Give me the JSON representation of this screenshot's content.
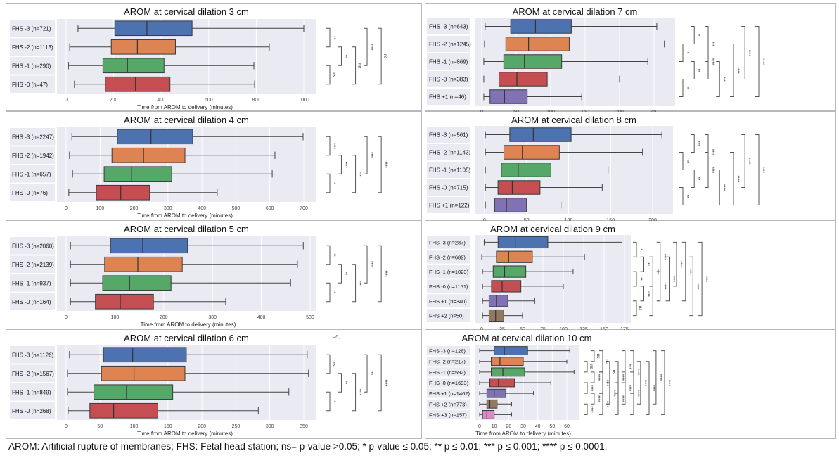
{
  "caption": "AROM: Artificial rupture of membranes; FHS: Fetal head station; ns= p-value >0.05; * p-value ≤ 0.05; ** p ≤ 0.01; *** p ≤ 0.001; **** p ≤ 0.0001.",
  "stray_text": "=6,",
  "colors": {
    "FHS -3": "#4c72b0",
    "FHS -2": "#dd8452",
    "FHS -1": "#55a868",
    "FHS -0": "#c44e52",
    "FHS +1": "#8172b3",
    "FHS +2": "#937860",
    "FHS +3": "#da8bc3",
    "plot_bg": "#eaeaf2"
  },
  "chart_data": [
    {
      "type": "box",
      "title": "AROM at cervical dilation 3 cm",
      "xlabel": "Time from AROM to delivery (minutes)",
      "xticks": [
        0,
        200,
        400,
        600,
        800,
        1000
      ],
      "categories": [
        "FHS -3 (n=721)",
        "FHS -2 (n=1113)",
        "FHS -1 (n=290)",
        "FHS -0 (n=47)"
      ],
      "groups": [
        "FHS -3",
        "FHS -2",
        "FHS -1",
        "FHS -0"
      ],
      "boxes": [
        [
          50,
          205,
          340,
          530,
          1000
        ],
        [
          15,
          190,
          300,
          460,
          855
        ],
        [
          10,
          155,
          258,
          412,
          790
        ],
        [
          35,
          165,
          292,
          437,
          793
        ]
      ],
      "comparisons": [
        [
          2,
          3,
          "ns"
        ],
        [
          1,
          2,
          "**"
        ],
        [
          0,
          1,
          "**"
        ],
        [
          1,
          3,
          "ns"
        ],
        [
          0,
          2,
          "****"
        ],
        [
          0,
          3,
          "ns"
        ]
      ]
    },
    {
      "type": "box",
      "title": "AROM at cervical dilation 4 cm",
      "xlabel": "Time from AROM to delivery (minutes)",
      "xticks": [
        0,
        100,
        200,
        300,
        400,
        500,
        600,
        700
      ],
      "categories": [
        "FHS -3 (n=2247)",
        "FHS -2 (n=1942)",
        "FHS -1 (n=657)",
        "FHS -0 (n=76)"
      ],
      "groups": [
        "FHS -3",
        "FHS -2",
        "FHS -1",
        "FHS -0"
      ],
      "boxes": [
        [
          17,
          151,
          250,
          373,
          698
        ],
        [
          10,
          135,
          228,
          350,
          615
        ],
        [
          19,
          112,
          193,
          311,
          607
        ],
        [
          8,
          89,
          161,
          246,
          445
        ]
      ],
      "comparisons": [
        [
          2,
          3,
          "*"
        ],
        [
          1,
          2,
          "****"
        ],
        [
          0,
          1,
          "****"
        ],
        [
          1,
          3,
          "***"
        ],
        [
          0,
          2,
          "****"
        ],
        [
          0,
          3,
          "****"
        ]
      ]
    },
    {
      "type": "box",
      "title": "AROM at cervical dilation 5 cm",
      "xlabel": "Time from AROM to delivery (minutes)",
      "xticks": [
        0,
        100,
        200,
        300,
        400,
        500
      ],
      "categories": [
        "FHS -3 (n=2060)",
        "FHS -2 (n=2139)",
        "FHS -1 (n=937)",
        "FHS -0 (n=164)"
      ],
      "groups": [
        "FHS -3",
        "FHS -2",
        "FHS -1",
        "FHS -0"
      ],
      "boxes": [
        [
          9,
          91,
          157,
          249,
          486
        ],
        [
          9,
          79,
          147,
          238,
          474
        ],
        [
          9,
          75,
          130,
          215,
          460
        ],
        [
          9,
          60,
          111,
          179,
          327
        ]
      ],
      "comparisons": [
        [
          2,
          3,
          "*"
        ],
        [
          1,
          2,
          "**"
        ],
        [
          0,
          1,
          "**"
        ],
        [
          1,
          3,
          "***"
        ],
        [
          0,
          2,
          "****"
        ],
        [
          0,
          3,
          "****"
        ]
      ]
    },
    {
      "type": "box",
      "title": "AROM at cervical dilation 6 cm",
      "xlabel": "Time from AROM to delivery (minutes)",
      "xticks": [
        0,
        50,
        100,
        150,
        200,
        250,
        300,
        350
      ],
      "categories": [
        "FHS -3 (n=1126)",
        "FHS -2 (n=1567)",
        "FHS -1 (n=849)",
        "FHS -0 (n=268)"
      ],
      "groups": [
        "FHS -3",
        "FHS -2",
        "FHS -1",
        "FHS -0"
      ],
      "boxes": [
        [
          5,
          55,
          98,
          177,
          355
        ],
        [
          2,
          52,
          100,
          175,
          357
        ],
        [
          2,
          41,
          89,
          157,
          328
        ],
        [
          3,
          35,
          70,
          135,
          283
        ]
      ],
      "comparisons": [
        [
          2,
          3,
          "*"
        ],
        [
          1,
          2,
          "**"
        ],
        [
          0,
          1,
          "ns"
        ],
        [
          1,
          3,
          "****"
        ],
        [
          0,
          2,
          "**"
        ],
        [
          0,
          3,
          "****"
        ]
      ]
    },
    {
      "type": "box",
      "title": "AROM at cervical dilation 7 cm",
      "xlabel": "Time from AROM to delivery (minutes)",
      "xticks": [
        0,
        50,
        100,
        150,
        200,
        250
      ],
      "categories": [
        "FHS -3 (n=643)",
        "FHS -2 (n=1245)",
        "FHS -1 (n=869)",
        "FHS -0 (n=383)",
        "FHS +1 (n=46)"
      ],
      "groups": [
        "FHS -3",
        "FHS -2",
        "FHS -1",
        "FHS -0",
        "FHS +1"
      ],
      "boxes": [
        [
          5,
          42,
          78,
          130,
          254
        ],
        [
          4,
          35,
          68,
          127,
          265
        ],
        [
          3,
          32,
          62,
          116,
          241
        ],
        [
          3,
          25,
          51,
          95,
          200
        ],
        [
          3,
          12,
          33,
          66,
          145
        ]
      ],
      "comparisons": [
        [
          3,
          4,
          "*"
        ],
        [
          2,
          3,
          "**"
        ],
        [
          1,
          2,
          "*"
        ],
        [
          0,
          1,
          "*"
        ],
        [
          1,
          3,
          "****"
        ],
        [
          2,
          4,
          "***"
        ],
        [
          0,
          2,
          "***"
        ],
        [
          1,
          4,
          "****"
        ],
        [
          0,
          3,
          "****"
        ],
        [
          0,
          4,
          "****"
        ]
      ]
    },
    {
      "type": "box",
      "title": "AROM at cervical dilation 8 cm",
      "xlabel": "Time from AROM to delivery (minutes)",
      "xticks": [
        0,
        50,
        100,
        150,
        200
      ],
      "categories": [
        "FHS -3 (n=561)",
        "FHS -2 (n=1143)",
        "FHS -1 (n=1105)",
        "FHS -0 (n=715)",
        "FHS +1 (n=122)"
      ],
      "groups": [
        "FHS -3",
        "FHS -2",
        "FHS -1",
        "FHS -0",
        "FHS +1"
      ],
      "boxes": [
        [
          1,
          30,
          58,
          103,
          211
        ],
        [
          1,
          23,
          45,
          89,
          188
        ],
        [
          1,
          20,
          40,
          79,
          147
        ],
        [
          1,
          16,
          33,
          66,
          140
        ],
        [
          1,
          12,
          26,
          50,
          91
        ]
      ],
      "comparisons": [
        [
          3,
          4,
          "**"
        ],
        [
          2,
          3,
          "**"
        ],
        [
          1,
          2,
          "**"
        ],
        [
          0,
          1,
          "***"
        ],
        [
          1,
          3,
          "****"
        ],
        [
          2,
          4,
          "****"
        ],
        [
          0,
          2,
          "****"
        ],
        [
          1,
          4,
          "****"
        ],
        [
          0,
          3,
          "****"
        ],
        [
          0,
          4,
          "****"
        ]
      ]
    },
    {
      "type": "box",
      "title": "AROM at cervical dilation 9 cm",
      "xlabel": "Time from AROM to delivery (minutes)",
      "xticks": [
        0,
        25,
        50,
        75,
        100,
        125,
        150,
        175
      ],
      "categories": [
        "FHS -3 (n=287)",
        "FHS -2 (n=689)",
        "FHS -1 (n=1023)",
        "FHS -0 (n=1151)",
        "FHS +1 (n=340)",
        "FHS +2 (n=50)"
      ],
      "groups": [
        "FHS -3",
        "FHS -2",
        "FHS -1",
        "FHS -0",
        "FHS +1",
        "FHS +2"
      ],
      "boxes": [
        [
          3,
          20,
          41,
          81,
          172
        ],
        [
          0,
          18,
          33,
          62,
          126
        ],
        [
          1,
          14,
          28,
          54,
          112
        ],
        [
          1,
          12,
          25,
          48,
          100
        ],
        [
          1,
          9,
          18,
          32,
          65
        ],
        [
          1,
          9,
          17,
          27,
          50
        ]
      ],
      "comparisons": [
        [
          4,
          5,
          "ns"
        ],
        [
          3,
          4,
          "****"
        ],
        [
          2,
          3,
          "**"
        ],
        [
          1,
          2,
          "**"
        ],
        [
          0,
          1,
          "*"
        ],
        [
          3,
          5,
          "*"
        ],
        [
          2,
          4,
          "****"
        ],
        [
          1,
          3,
          "****"
        ],
        [
          0,
          2,
          "****"
        ],
        [
          1,
          4,
          "****"
        ],
        [
          0,
          3,
          "****"
        ],
        [
          0,
          4,
          "****"
        ],
        [
          1,
          5,
          "****"
        ],
        [
          0,
          5,
          "****"
        ]
      ]
    },
    {
      "type": "box",
      "title": "AROM at cervical dilation 10 cm",
      "xlabel": "Time from AROM to delivery (minutes)",
      "xticks": [
        0,
        10,
        20,
        30,
        40,
        50,
        60
      ],
      "categories": [
        "FHS -3 (n=128)",
        "FHS -2 (n=217)",
        "FHS -1 (n=592)",
        "FHS -0 (n=1693)",
        "FHS +1 (n=1462)",
        "FHS +2 (n=773)",
        "FHS +3 (n=157)"
      ],
      "groups": [
        "FHS -3",
        "FHS -2",
        "FHS -1",
        "FHS -0",
        "FHS +1",
        "FHS +2",
        "FHS +3"
      ],
      "boxes": [
        [
          0,
          10,
          17,
          33,
          62
        ],
        [
          0,
          8,
          14,
          30,
          60
        ],
        [
          0,
          8,
          16,
          31,
          65
        ],
        [
          0,
          7,
          13,
          24,
          49
        ],
        [
          0,
          5,
          10,
          18,
          37
        ],
        [
          0,
          5,
          7,
          12,
          22
        ],
        [
          0,
          2,
          5,
          10,
          22
        ]
      ],
      "comparisons": [
        [
          5,
          6,
          "****"
        ],
        [
          4,
          5,
          "****"
        ],
        [
          3,
          4,
          "****"
        ],
        [
          2,
          3,
          "****"
        ],
        [
          1,
          2,
          "ns"
        ],
        [
          0,
          1,
          "ns"
        ],
        [
          4,
          6,
          "****"
        ],
        [
          3,
          5,
          "****"
        ],
        [
          2,
          4,
          "****"
        ],
        [
          1,
          3,
          "ns"
        ],
        [
          0,
          2,
          "ns"
        ],
        [
          3,
          6,
          "****"
        ],
        [
          2,
          5,
          "****"
        ],
        [
          1,
          4,
          "****"
        ],
        [
          0,
          3,
          "***"
        ],
        [
          2,
          6,
          "****"
        ],
        [
          1,
          5,
          "****"
        ],
        [
          0,
          4,
          "****"
        ],
        [
          1,
          6,
          "****"
        ],
        [
          0,
          5,
          "****"
        ],
        [
          0,
          6,
          "****"
        ]
      ]
    }
  ]
}
